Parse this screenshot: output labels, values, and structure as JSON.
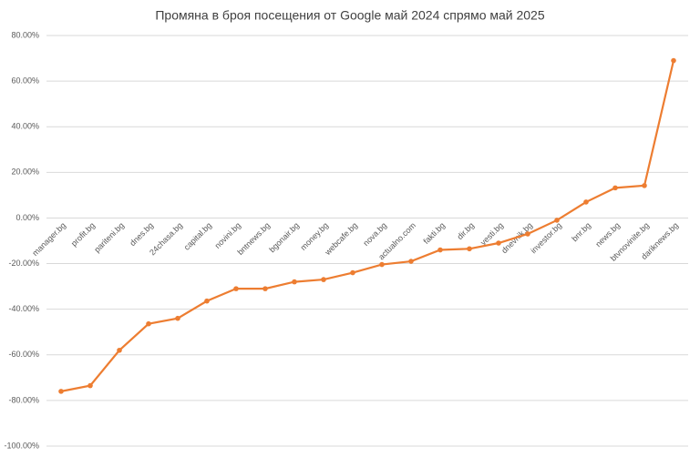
{
  "chart_data": {
    "type": "line",
    "title": "Промяна в броя посещения от Google май 2024 спрямо май 2025",
    "categories": [
      "manager.bg",
      "profit.bg",
      "pariteni.bg",
      "dnes.bg",
      "24chasa.bg",
      "capital.bg",
      "novini.bg",
      "bntnews.bg",
      "bgonair.bg",
      "money.bg",
      "webcafe.bg",
      "nova.bg",
      "actualno.com",
      "fakti.bg",
      "dir.bg",
      "vesti.bg",
      "dnevnik.bg",
      "investor.bg",
      "bnr.bg",
      "news.bg",
      "btvnovinite.bg",
      "dariknews.bg"
    ],
    "values": [
      -76,
      -73.5,
      -58,
      -46.4,
      -44,
      -36.4,
      -31,
      -31,
      -28,
      -27,
      -24,
      -20.4,
      -19,
      -14,
      -13.5,
      -11,
      -7,
      -1,
      7,
      13.2,
      14.2,
      69
    ],
    "color": "#ed7d31",
    "ylim": [
      -100,
      80
    ],
    "yticks": [
      {
        "value": -100,
        "label": "-100.00%"
      },
      {
        "value": -80,
        "label": "-80.00%"
      },
      {
        "value": -60,
        "label": "-60.00%"
      },
      {
        "value": -40,
        "label": "-40.00%"
      },
      {
        "value": -20,
        "label": "-20.00%"
      },
      {
        "value": 0,
        "label": "0.00%"
      },
      {
        "value": 20,
        "label": "20.00%"
      },
      {
        "value": 40,
        "label": "40.00%"
      },
      {
        "value": 60,
        "label": "60.00%"
      },
      {
        "value": 80,
        "label": "80.00%"
      }
    ],
    "grid": true
  }
}
